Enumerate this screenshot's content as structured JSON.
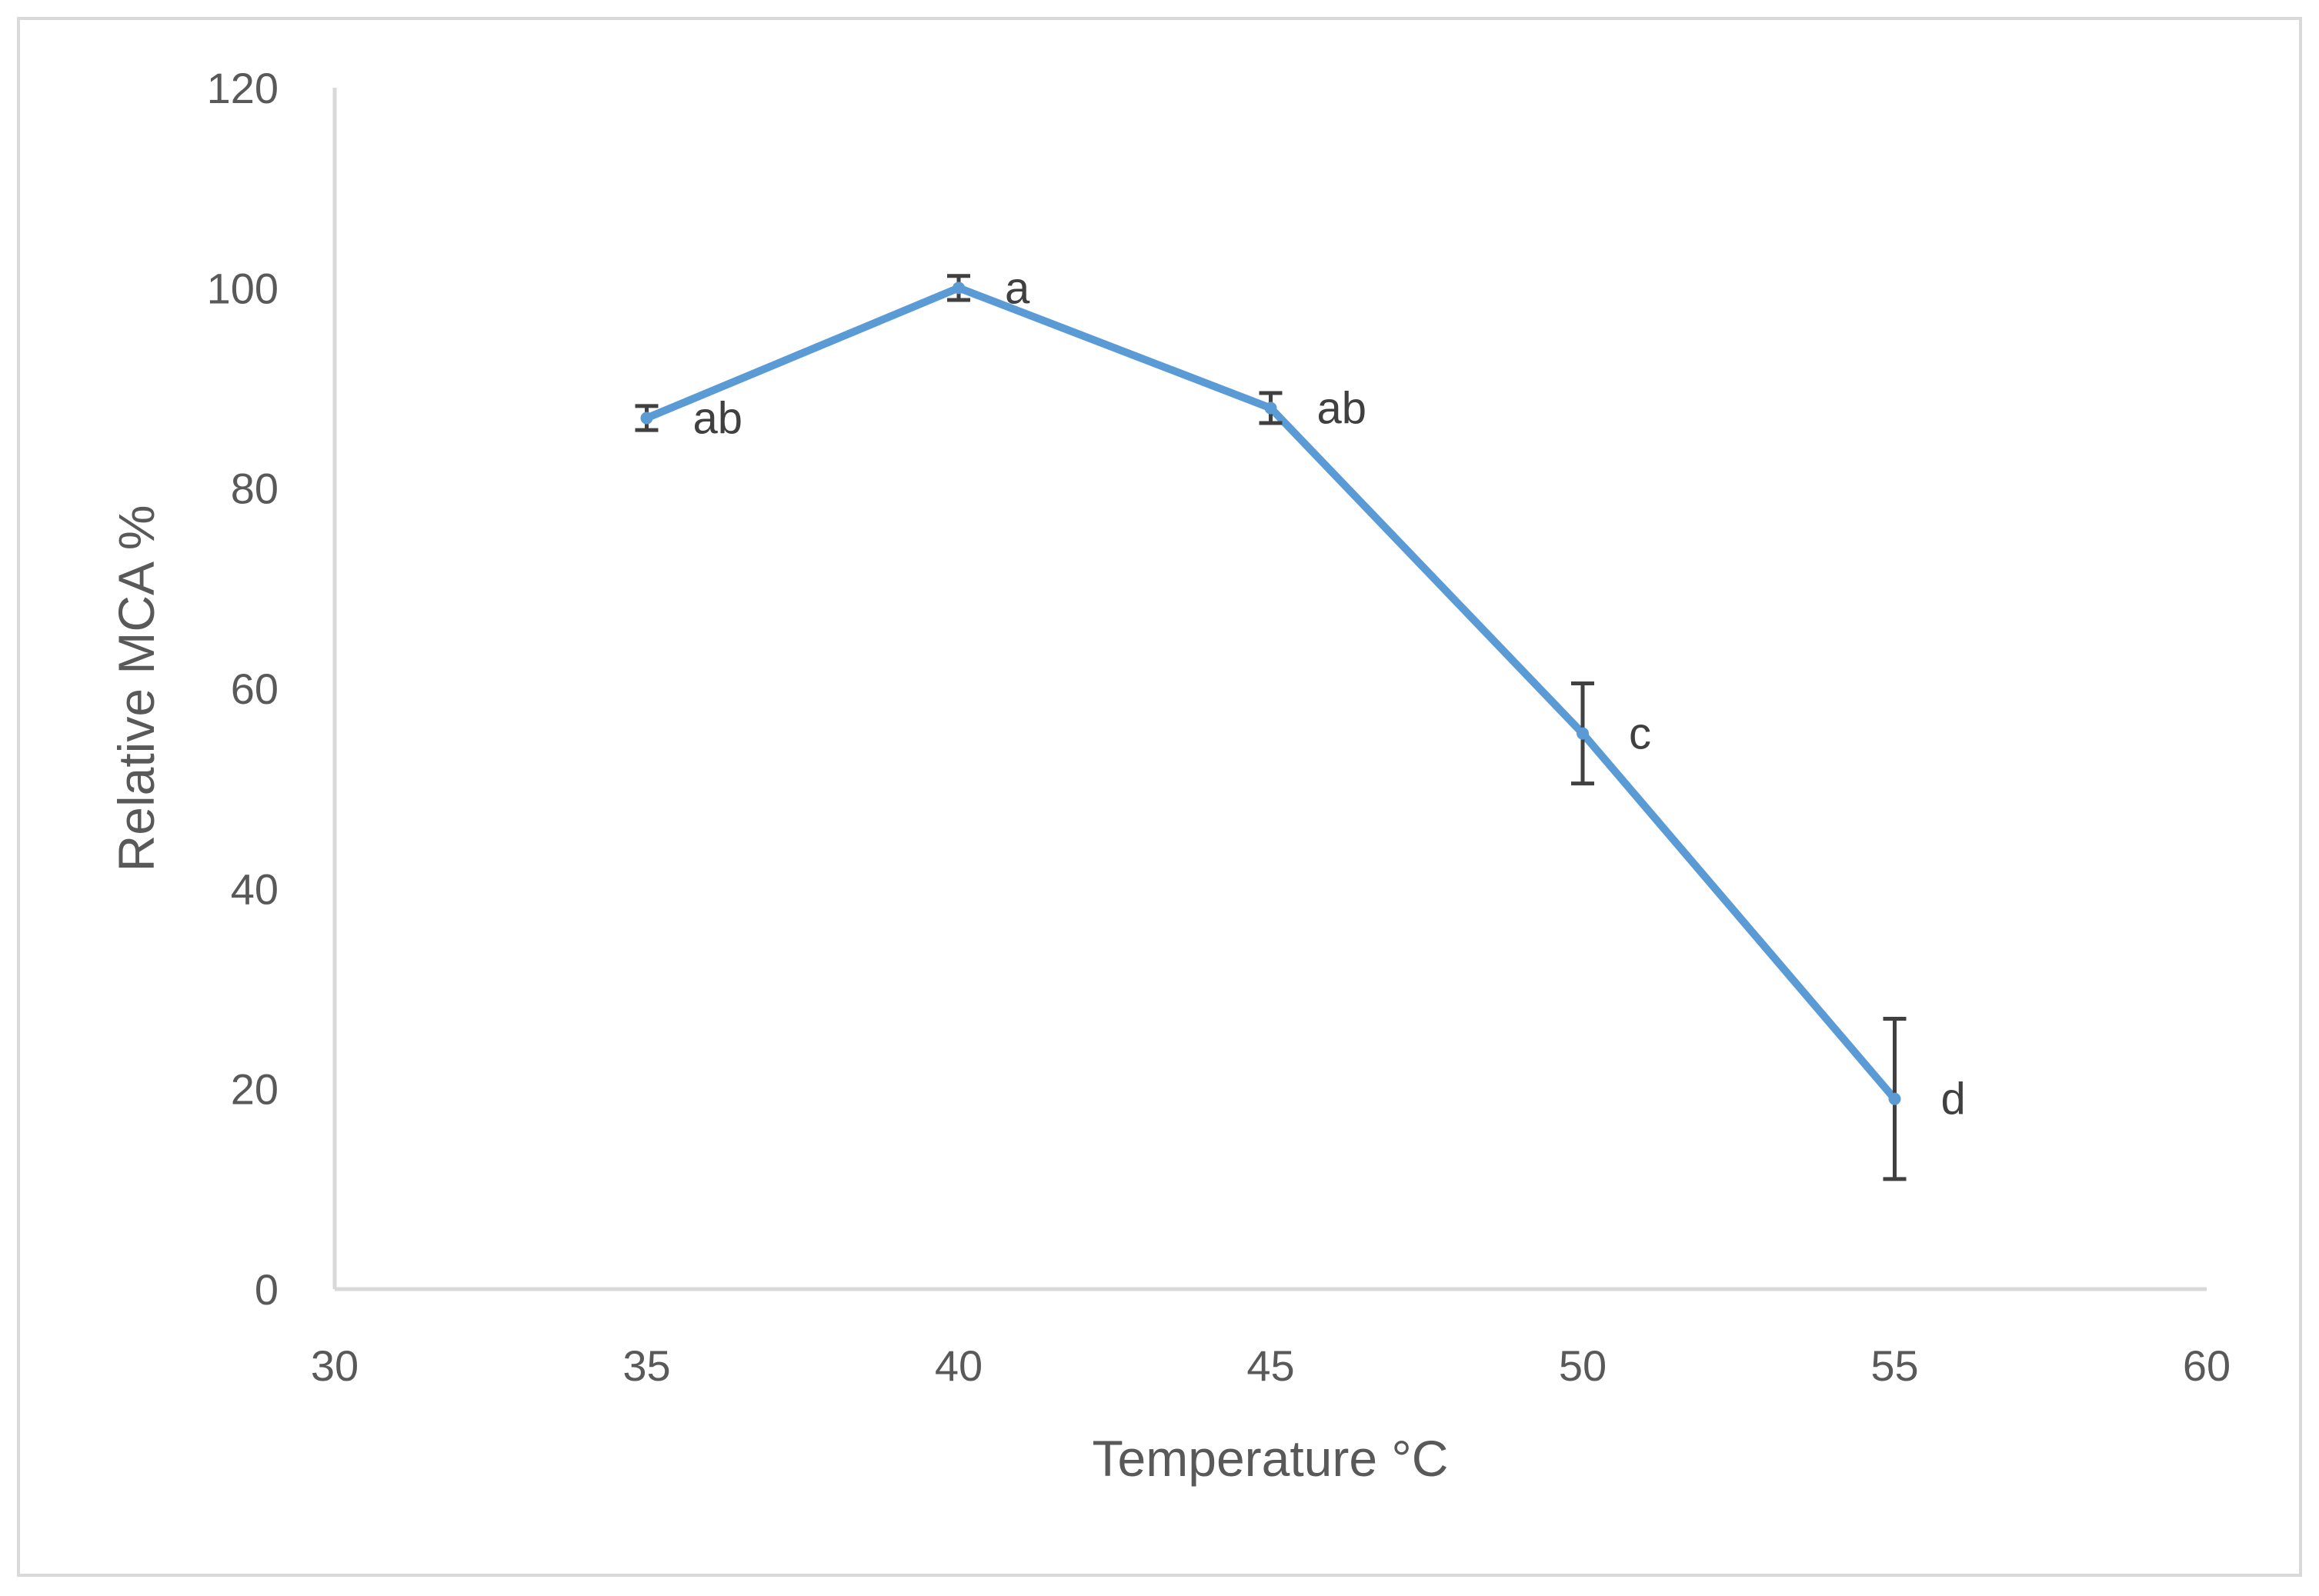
{
  "chart_data": {
    "type": "line",
    "title": "",
    "xlabel": "Temperature °C",
    "ylabel": "Relative MCA %",
    "xlim": [
      30,
      60
    ],
    "ylim": [
      0,
      120
    ],
    "x_ticks": [
      "30",
      "35",
      "40",
      "45",
      "50",
      "55",
      "60"
    ],
    "y_ticks": [
      "0",
      "20",
      "40",
      "60",
      "80",
      "100",
      "120"
    ],
    "grid": false,
    "legend": "none",
    "series": [
      {
        "name": "Relative MCA",
        "color": "#5b9bd5",
        "x": [
          35,
          40,
          45,
          50,
          55
        ],
        "y": [
          87,
          100,
          88,
          55.5,
          19
        ],
        "error": [
          1.2,
          1.2,
          1.5,
          5,
          8
        ],
        "labels": [
          "ab",
          "a",
          "ab",
          "c",
          "d"
        ]
      }
    ]
  },
  "colors": {
    "line": "#5b9bd5",
    "error_bar": "#404040",
    "axis": "#d9d9d9",
    "text": "#595959"
  }
}
